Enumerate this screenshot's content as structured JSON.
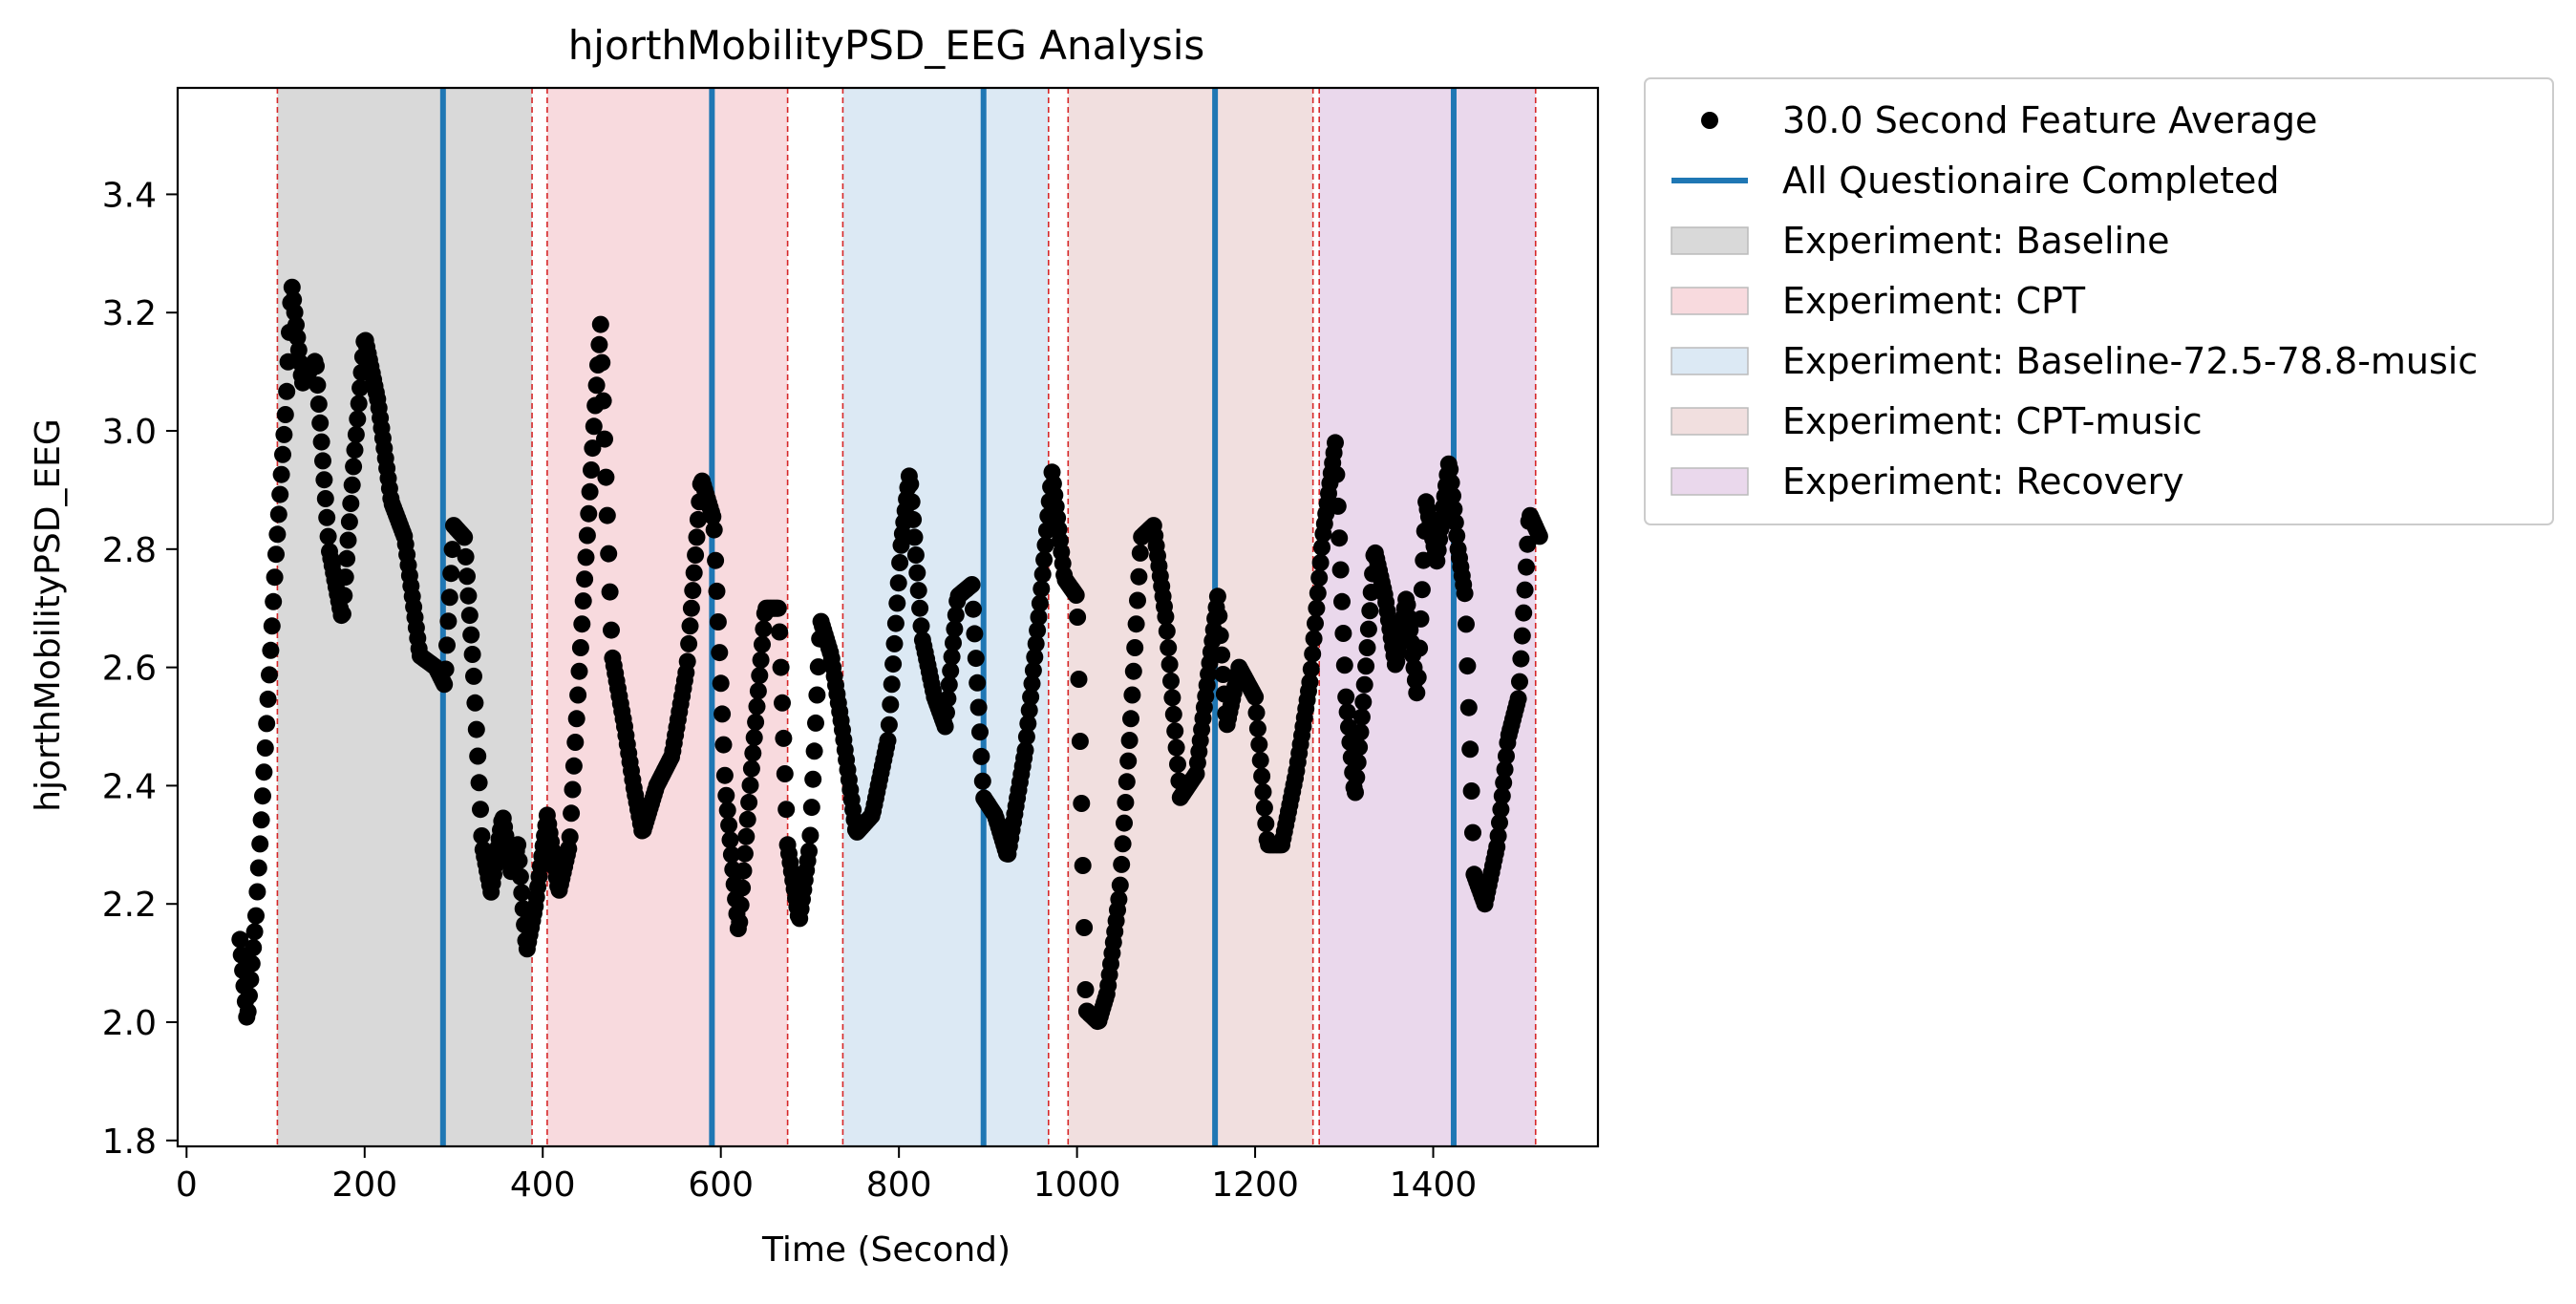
{
  "chart_data": {
    "type": "scatter",
    "title": "hjorthMobilityPSD_EEG Analysis",
    "xlabel": "Time (Second)",
    "ylabel": "hjorthMobilityPSD_EEG",
    "xlim": [
      -10,
      1585
    ],
    "ylim": [
      1.79,
      3.58
    ],
    "xticks": [
      0,
      200,
      400,
      600,
      800,
      1000,
      1200,
      1400
    ],
    "yticks": [
      1.8,
      2.0,
      2.2,
      2.4,
      2.6,
      2.8,
      3.0,
      3.2,
      3.4
    ],
    "grid": false,
    "legend_placement": "outside-top-right",
    "legend": [
      {
        "label": "30.0 Second Feature Average",
        "kind": "marker",
        "color": "#000000"
      },
      {
        "label": "All Questionaire Completed",
        "kind": "line",
        "color": "#1f77b4"
      },
      {
        "label": "Experiment: Baseline",
        "kind": "patch",
        "color": "#d9d9d9"
      },
      {
        "label": "Experiment: CPT",
        "kind": "patch",
        "color": "#f8dade"
      },
      {
        "label": "Experiment: Baseline-72.5-78.8-music",
        "kind": "patch",
        "color": "#dce9f4"
      },
      {
        "label": "Experiment: CPT-music",
        "kind": "patch",
        "color": "#f1dfdf"
      },
      {
        "label": "Experiment: Recovery",
        "kind": "patch",
        "color": "#ead8ec"
      }
    ],
    "regions": [
      {
        "name": "Experiment: Baseline",
        "start": 102,
        "end": 388,
        "color": "#d9d9d9"
      },
      {
        "name": "Experiment: CPT",
        "start": 405,
        "end": 675,
        "color": "#f8dade"
      },
      {
        "name": "Experiment: Baseline-72.5-78.8-music",
        "start": 737,
        "end": 968,
        "color": "#dce9f4"
      },
      {
        "name": "Experiment: CPT-music",
        "start": 990,
        "end": 1265,
        "color": "#f1dfdf"
      },
      {
        "name": "Experiment: Recovery",
        "start": 1272,
        "end": 1515,
        "color": "#ead8ec"
      }
    ],
    "boundary_lines": [
      102,
      388,
      405,
      675,
      737,
      968,
      990,
      1265,
      1272,
      1515
    ],
    "questionnaire_lines": [
      288,
      590,
      895,
      1155,
      1423
    ],
    "series": [
      {
        "label": "30.0 Second Feature Average",
        "color": "#000000",
        "keypoints": [
          [
            60,
            2.14
          ],
          [
            68,
            2.0
          ],
          [
            78,
            2.18
          ],
          [
            88,
            2.45
          ],
          [
            100,
            2.78
          ],
          [
            112,
            3.05
          ],
          [
            118,
            3.25
          ],
          [
            130,
            3.08
          ],
          [
            145,
            3.12
          ],
          [
            160,
            2.8
          ],
          [
            175,
            2.68
          ],
          [
            188,
            2.95
          ],
          [
            200,
            3.16
          ],
          [
            215,
            3.05
          ],
          [
            230,
            2.88
          ],
          [
            245,
            2.82
          ],
          [
            262,
            2.62
          ],
          [
            280,
            2.6
          ],
          [
            290,
            2.57
          ],
          [
            300,
            2.84
          ],
          [
            312,
            2.82
          ],
          [
            322,
            2.6
          ],
          [
            332,
            2.3
          ],
          [
            342,
            2.22
          ],
          [
            355,
            2.35
          ],
          [
            365,
            2.25
          ],
          [
            372,
            2.3
          ],
          [
            382,
            2.12
          ],
          [
            392,
            2.2
          ],
          [
            405,
            2.35
          ],
          [
            418,
            2.22
          ],
          [
            430,
            2.3
          ],
          [
            445,
            2.7
          ],
          [
            458,
            3.02
          ],
          [
            465,
            3.18
          ],
          [
            478,
            2.62
          ],
          [
            492,
            2.5
          ],
          [
            502,
            2.4
          ],
          [
            512,
            2.32
          ],
          [
            528,
            2.4
          ],
          [
            545,
            2.45
          ],
          [
            562,
            2.6
          ],
          [
            578,
            2.92
          ],
          [
            592,
            2.85
          ],
          [
            605,
            2.4
          ],
          [
            620,
            2.15
          ],
          [
            634,
            2.42
          ],
          [
            650,
            2.7
          ],
          [
            665,
            2.7
          ],
          [
            675,
            2.3
          ],
          [
            688,
            2.17
          ],
          [
            700,
            2.3
          ],
          [
            712,
            2.68
          ],
          [
            724,
            2.62
          ],
          [
            736,
            2.5
          ],
          [
            752,
            2.32
          ],
          [
            770,
            2.35
          ],
          [
            788,
            2.48
          ],
          [
            802,
            2.8
          ],
          [
            812,
            2.93
          ],
          [
            826,
            2.65
          ],
          [
            840,
            2.55
          ],
          [
            852,
            2.5
          ],
          [
            866,
            2.72
          ],
          [
            882,
            2.74
          ],
          [
            895,
            2.38
          ],
          [
            908,
            2.35
          ],
          [
            922,
            2.28
          ],
          [
            942,
            2.46
          ],
          [
            958,
            2.7
          ],
          [
            972,
            2.93
          ],
          [
            986,
            2.75
          ],
          [
            1000,
            2.72
          ],
          [
            1010,
            2.02
          ],
          [
            1024,
            2.0
          ],
          [
            1034,
            2.05
          ],
          [
            1048,
            2.22
          ],
          [
            1060,
            2.5
          ],
          [
            1072,
            2.82
          ],
          [
            1086,
            2.84
          ],
          [
            1100,
            2.68
          ],
          [
            1116,
            2.38
          ],
          [
            1134,
            2.42
          ],
          [
            1150,
            2.62
          ],
          [
            1158,
            2.72
          ],
          [
            1168,
            2.5
          ],
          [
            1182,
            2.6
          ],
          [
            1200,
            2.55
          ],
          [
            1214,
            2.3
          ],
          [
            1230,
            2.3
          ],
          [
            1246,
            2.42
          ],
          [
            1262,
            2.58
          ],
          [
            1276,
            2.82
          ],
          [
            1290,
            2.98
          ],
          [
            1302,
            2.55
          ],
          [
            1312,
            2.38
          ],
          [
            1322,
            2.55
          ],
          [
            1334,
            2.8
          ],
          [
            1346,
            2.72
          ],
          [
            1358,
            2.6
          ],
          [
            1370,
            2.72
          ],
          [
            1382,
            2.55
          ],
          [
            1392,
            2.88
          ],
          [
            1404,
            2.78
          ],
          [
            1418,
            2.95
          ],
          [
            1428,
            2.8
          ],
          [
            1436,
            2.72
          ],
          [
            1446,
            2.25
          ],
          [
            1458,
            2.2
          ],
          [
            1472,
            2.3
          ],
          [
            1484,
            2.48
          ],
          [
            1496,
            2.55
          ],
          [
            1508,
            2.86
          ],
          [
            1520,
            2.82
          ]
        ]
      }
    ]
  }
}
